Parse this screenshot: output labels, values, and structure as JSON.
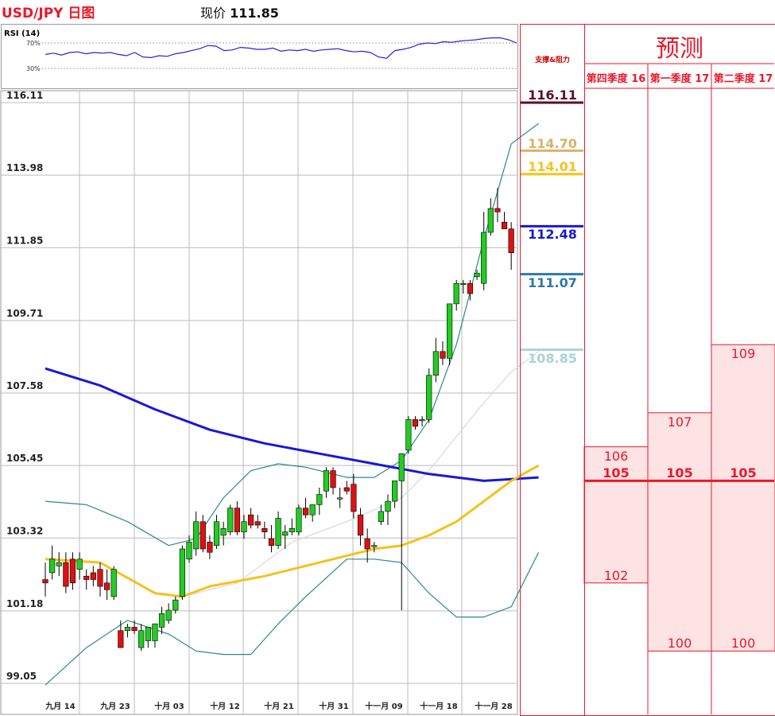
{
  "header": {
    "title": "USD/JPY 日图",
    "price_label": "现价",
    "price_value": "111.85"
  },
  "rsi": {
    "title": "RSI (14)",
    "level_high": "70%",
    "level_low": "30%",
    "values": [
      52,
      54,
      51,
      55,
      56,
      53,
      55,
      54,
      55,
      52,
      50,
      55,
      48,
      47,
      50,
      49,
      53,
      55,
      58,
      61,
      66,
      65,
      58,
      59,
      63,
      62,
      60,
      60,
      62,
      57,
      59,
      58,
      60,
      57,
      59,
      60,
      61,
      58,
      56,
      57,
      55,
      48,
      46,
      58,
      60,
      63,
      68,
      70,
      69,
      72,
      71,
      73,
      74,
      75,
      77,
      78,
      78,
      75,
      70
    ]
  },
  "colors": {
    "up_candle": "#22cc22",
    "down_candle": "#dd1111",
    "ma_blue": "#1818d8",
    "ma_yellow": "#f5c21a",
    "bollinger": "#2a8a8a",
    "accent_red": "#e8192c"
  },
  "chart_data": {
    "type": "candlestick",
    "ylim": [
      99.05,
      116.11
    ],
    "yticks": [
      "116.11",
      "113.98",
      "111.85",
      "109.71",
      "107.58",
      "105.45",
      "103.32",
      "101.18",
      "99.05"
    ],
    "xticks": [
      "九月 14",
      "九月 23",
      "十月 03",
      "十月 12",
      "十月 21",
      "十月 31",
      "十一月 09",
      "十一月 18",
      "十一月 28"
    ],
    "candles": [
      [
        102.1,
        102.6,
        101.6,
        102.0
      ],
      [
        102.3,
        103.1,
        102.1,
        102.7
      ],
      [
        102.5,
        102.9,
        102.2,
        102.6
      ],
      [
        102.6,
        102.9,
        101.7,
        101.9
      ],
      [
        102.7,
        102.9,
        101.8,
        102.0
      ],
      [
        102.4,
        102.9,
        102.1,
        102.7
      ],
      [
        102.2,
        102.4,
        101.8,
        102.1
      ],
      [
        102.3,
        102.5,
        101.9,
        102.1
      ],
      [
        102.4,
        102.6,
        101.6,
        101.9
      ],
      [
        102.0,
        102.4,
        101.5,
        101.8
      ],
      [
        101.6,
        102.5,
        101.5,
        102.4
      ],
      [
        100.6,
        100.9,
        100.1,
        100.1
      ],
      [
        100.6,
        100.8,
        100.4,
        100.7
      ],
      [
        100.7,
        100.9,
        100.5,
        100.6
      ],
      [
        100.1,
        100.8,
        100.0,
        100.6
      ],
      [
        100.3,
        100.7,
        100.1,
        100.7
      ],
      [
        100.3,
        100.8,
        100.1,
        100.8
      ],
      [
        100.7,
        101.3,
        100.5,
        101.1
      ],
      [
        100.9,
        101.4,
        100.8,
        101.2
      ],
      [
        101.2,
        101.6,
        101.1,
        101.5
      ],
      [
        101.6,
        103.1,
        101.5,
        103.0
      ],
      [
        102.7,
        103.4,
        102.6,
        103.2
      ],
      [
        103.0,
        104.1,
        102.8,
        103.8
      ],
      [
        103.8,
        104.0,
        102.9,
        103.0
      ],
      [
        103.2,
        103.4,
        102.7,
        102.9
      ],
      [
        103.1,
        104.0,
        103.0,
        103.8
      ],
      [
        103.4,
        103.8,
        103.1,
        103.6
      ],
      [
        103.5,
        104.3,
        103.4,
        104.2
      ],
      [
        104.2,
        104.4,
        103.4,
        103.5
      ],
      [
        103.5,
        104.0,
        103.3,
        103.8
      ],
      [
        104.0,
        104.2,
        103.6,
        103.7
      ],
      [
        103.8,
        104.0,
        103.6,
        103.7
      ],
      [
        103.6,
        103.8,
        103.3,
        103.5
      ],
      [
        103.3,
        103.7,
        102.9,
        103.1
      ],
      [
        103.1,
        104.1,
        103.0,
        103.9
      ],
      [
        103.4,
        103.7,
        103.0,
        103.5
      ],
      [
        103.5,
        103.9,
        103.4,
        103.6
      ],
      [
        103.5,
        104.3,
        103.4,
        104.2
      ],
      [
        104.2,
        104.5,
        103.9,
        104.0
      ],
      [
        104.0,
        104.3,
        103.8,
        104.3
      ],
      [
        104.3,
        104.8,
        104.0,
        104.6
      ],
      [
        104.7,
        105.4,
        104.5,
        105.3
      ],
      [
        105.3,
        105.4,
        104.6,
        104.8
      ],
      [
        104.5,
        104.8,
        104.2,
        104.5
      ],
      [
        104.8,
        105.0,
        104.6,
        104.7
      ],
      [
        104.9,
        105.2,
        103.9,
        104.1
      ],
      [
        104.0,
        104.2,
        103.1,
        103.4
      ],
      [
        103.3,
        103.6,
        102.6,
        103.0
      ],
      [
        103.1,
        103.2,
        102.9,
        103.1
      ],
      [
        103.8,
        104.3,
        103.7,
        104.1
      ],
      [
        104.1,
        104.6,
        103.7,
        104.4
      ],
      [
        104.4,
        105.0,
        104.2,
        105.0
      ],
      [
        105.0,
        105.8,
        101.2,
        105.8
      ],
      [
        105.9,
        106.9,
        105.8,
        106.8
      ],
      [
        106.8,
        106.9,
        106.5,
        106.6
      ],
      [
        106.8,
        106.9,
        106.6,
        106.8
      ],
      [
        106.8,
        108.3,
        106.7,
        108.1
      ],
      [
        108.1,
        109.2,
        107.9,
        108.8
      ],
      [
        108.8,
        109.1,
        108.4,
        108.6
      ],
      [
        108.6,
        110.2,
        108.4,
        110.2
      ],
      [
        110.2,
        110.9,
        110.0,
        110.8
      ],
      [
        110.8,
        110.9,
        110.5,
        110.8
      ],
      [
        110.8,
        110.9,
        110.3,
        110.5
      ],
      [
        111.0,
        111.2,
        110.9,
        111.1
      ],
      [
        110.8,
        112.9,
        110.6,
        112.3
      ],
      [
        112.3,
        113.3,
        112.2,
        113.0
      ],
      [
        113.0,
        113.6,
        112.6,
        112.9
      ],
      [
        112.6,
        112.9,
        112.4,
        112.4
      ],
      [
        112.4,
        112.6,
        111.2,
        111.7
      ]
    ],
    "ma_blue": {
      "x": [
        0,
        8,
        16,
        24,
        32,
        40,
        48,
        56,
        64,
        72
      ],
      "y": [
        108.3,
        107.8,
        107.1,
        106.5,
        106.1,
        105.8,
        105.5,
        105.2,
        105.0,
        105.1
      ]
    },
    "ma_yellow": {
      "x": [
        0,
        8,
        16,
        20,
        24,
        32,
        40,
        48,
        52,
        56,
        60,
        64,
        68,
        72
      ],
      "y": [
        102.7,
        102.6,
        101.7,
        101.6,
        101.9,
        102.2,
        102.6,
        103.0,
        103.1,
        103.4,
        103.8,
        104.4,
        105.0,
        105.45
      ]
    },
    "ma_grey": {
      "x": [
        20,
        28,
        36,
        44,
        52,
        56,
        60,
        64,
        68,
        72
      ],
      "y": [
        101.6,
        102.0,
        103.2,
        103.8,
        104.5,
        105.3,
        106.3,
        107.3,
        108.2,
        108.8
      ]
    },
    "bb_upper": {
      "x": [
        0,
        6,
        12,
        18,
        22,
        26,
        30,
        34,
        38,
        44,
        48,
        52,
        56,
        60,
        64,
        68,
        72
      ],
      "y": [
        104.4,
        104.3,
        103.8,
        103.1,
        103.3,
        104.5,
        105.3,
        105.5,
        105.4,
        105.1,
        105.1,
        105.6,
        106.8,
        109.0,
        112.1,
        114.9,
        115.5
      ]
    },
    "bb_lower": {
      "x": [
        0,
        6,
        12,
        18,
        22,
        26,
        30,
        34,
        38,
        44,
        48,
        52,
        56,
        60,
        64,
        68,
        72
      ],
      "y": [
        99.0,
        100.1,
        100.9,
        100.5,
        100.0,
        99.9,
        99.9,
        100.8,
        101.6,
        102.7,
        102.7,
        102.6,
        101.7,
        101.0,
        101.0,
        101.3,
        102.9
      ]
    },
    "support_resistance": {
      "title": "支撑&阻力",
      "levels": [
        {
          "label": "116.11",
          "value": 116.11,
          "color": "#5a0f2a"
        },
        {
          "label": "114.70",
          "value": 114.7,
          "color": "#d8b26a"
        },
        {
          "label": "114.01",
          "value": 114.01,
          "color": "#f5c21a"
        },
        {
          "label": "112.48",
          "value": 112.48,
          "color": "#1818d8"
        },
        {
          "label": "111.07",
          "value": 111.07,
          "color": "#2c7aa6"
        },
        {
          "label": "108.85",
          "value": 108.85,
          "color": "#a8d4d4"
        }
      ]
    },
    "forecast": {
      "title": "预测",
      "quarters": [
        {
          "label": "第四季度 16",
          "high": "106",
          "mid": "105",
          "low": "102",
          "high_v": 106,
          "low_v": 102
        },
        {
          "label": "第一季度 17",
          "high": "107",
          "mid": "105",
          "low": "100",
          "high_v": 107,
          "low_v": 100
        },
        {
          "label": "第二季度 17",
          "high": "109",
          "mid": "105",
          "low": "100",
          "high_v": 109,
          "low_v": 100
        }
      ]
    }
  }
}
